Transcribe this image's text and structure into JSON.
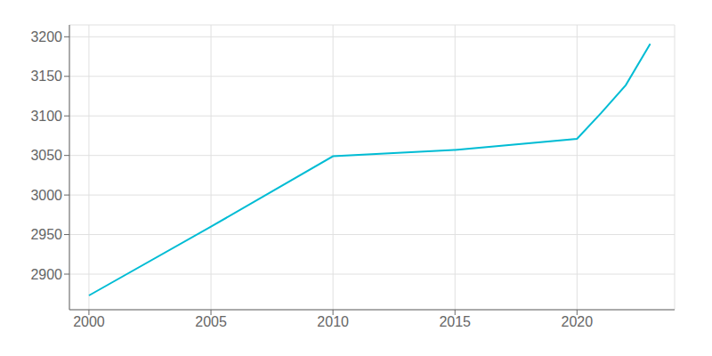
{
  "chart_data": {
    "type": "line",
    "x": [
      2000,
      2005,
      2010,
      2015,
      2020,
      2021,
      2022,
      2023
    ],
    "values": [
      2873,
      2960,
      3049,
      3057,
      3071,
      3104,
      3139,
      3191
    ],
    "color": "#00bcd4",
    "xlim": [
      1999.2,
      2024.0
    ],
    "ylim": [
      2855,
      3215
    ],
    "xticks": [
      2000,
      2005,
      2010,
      2015,
      2020
    ],
    "yticks": [
      2900,
      2950,
      3000,
      3050,
      3100,
      3150,
      3200
    ],
    "grid": true
  }
}
